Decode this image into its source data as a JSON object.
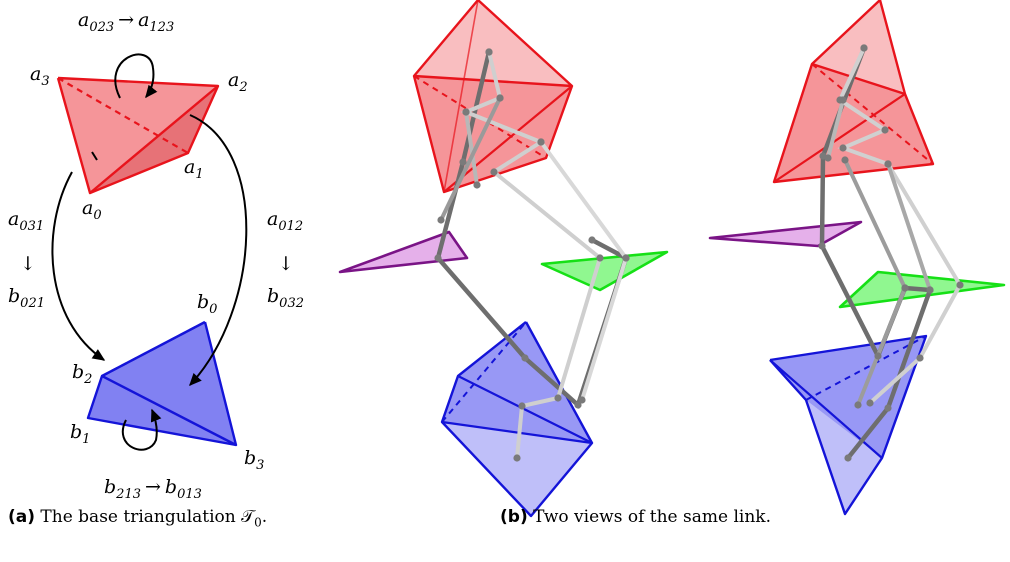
{
  "figure_a": {
    "vertex_labels": {
      "a0": {
        "base": "a",
        "sub": "0"
      },
      "a1": {
        "base": "a",
        "sub": "1"
      },
      "a2": {
        "base": "a",
        "sub": "2"
      },
      "a3": {
        "base": "a",
        "sub": "3"
      },
      "b0": {
        "base": "b",
        "sub": "0"
      },
      "b1": {
        "base": "b",
        "sub": "1"
      },
      "b2": {
        "base": "b",
        "sub": "2"
      },
      "b3": {
        "base": "b",
        "sub": "3"
      }
    },
    "gluings": {
      "top": {
        "from_base": "a",
        "from_sub": "023",
        "arrow": "→",
        "to_base": "a",
        "to_sub": "123"
      },
      "bottom": {
        "from_base": "b",
        "from_sub": "213",
        "arrow": "→",
        "to_base": "b",
        "to_sub": "013"
      },
      "left": {
        "from_base": "a",
        "from_sub": "031",
        "arrow": "↓",
        "to_base": "b",
        "to_sub": "021"
      },
      "right": {
        "from_base": "a",
        "from_sub": "012",
        "arrow": "↓",
        "to_base": "b",
        "to_sub": "032"
      }
    },
    "caption": {
      "tag": "(a)",
      "text_before": "The base triangulation ",
      "symbol": "𝒯",
      "symbol_sub": "0",
      "text_after": "."
    }
  },
  "figure_b": {
    "caption": {
      "tag": "(b)",
      "text": "Two views of the same link."
    }
  },
  "colors": {
    "red": "#e8141c",
    "blue": "#1414d8",
    "green": "#16e016",
    "purple": "#7a1486",
    "tube_dark": "#6e6e6e",
    "tube_light": "#d2d2d2"
  }
}
